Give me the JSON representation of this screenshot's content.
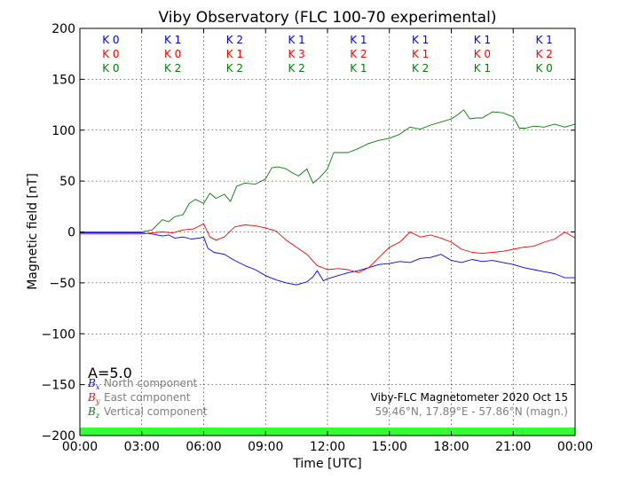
{
  "chart_data": {
    "type": "line",
    "title": "Viby Observatory (FLC 100-70 experimental)",
    "xlabel": "Time [UTC]",
    "ylabel": "Magnetic field [nT]",
    "xlim": [
      0,
      24
    ],
    "ylim": [
      -200,
      200
    ],
    "x_ticks": [
      "00:00",
      "03:00",
      "06:00",
      "09:00",
      "12:00",
      "15:00",
      "18:00",
      "21:00",
      "00:00"
    ],
    "y_ticks": [
      200,
      150,
      100,
      50,
      0,
      -50,
      -100,
      -150,
      -200
    ],
    "y_tick_labels": [
      "200",
      "150",
      "100",
      "50",
      "0",
      "−50",
      "−100",
      "−150",
      "−200"
    ],
    "grid": true,
    "series": [
      {
        "name": "North component",
        "legend_symbol": "B",
        "legend_sub": "x",
        "color": "#0000ff",
        "x": [
          0,
          1,
          2,
          3,
          3.5,
          4,
          4.3,
          4.6,
          5,
          5.4,
          5.8,
          6,
          6.2,
          6.5,
          7,
          7.5,
          8,
          8.5,
          9,
          9.5,
          10,
          10.5,
          11,
          11.3,
          11.5,
          11.8,
          12,
          12.5,
          13,
          13.5,
          14,
          14.5,
          15,
          15.5,
          16,
          16.5,
          17,
          17.5,
          18,
          18.5,
          19,
          19.5,
          20,
          20.5,
          21,
          21.5,
          22,
          22.5,
          23,
          23.5,
          24
        ],
        "y": [
          -1,
          -1,
          -1,
          -1,
          -2,
          -4,
          -3,
          -6,
          -5,
          -7,
          -6,
          -5,
          -16,
          -20,
          -22,
          -28,
          -33,
          -37,
          -43,
          -47,
          -50,
          -52,
          -49,
          -44,
          -38,
          -48,
          -46,
          -43,
          -40,
          -38,
          -35,
          -32,
          -31,
          -29,
          -30,
          -26,
          -25,
          -22,
          -28,
          -30,
          -27,
          -29,
          -28,
          -30,
          -32,
          -35,
          -37,
          -39,
          -41,
          -45,
          -45
        ]
      },
      {
        "name": "East component",
        "legend_symbol": "B",
        "legend_sub": "y",
        "color": "#ff0000",
        "x": [
          0,
          1,
          2,
          3,
          3.5,
          4,
          4.5,
          5,
          5.5,
          6,
          6.3,
          6.6,
          7,
          7.5,
          8,
          8.5,
          9,
          9.5,
          10,
          10.5,
          11,
          11.5,
          12,
          12.5,
          13,
          13.5,
          14,
          14.5,
          15,
          15.5,
          16,
          16.5,
          17,
          17.5,
          18,
          18.5,
          19,
          19.5,
          20,
          20.5,
          21,
          21.5,
          22,
          22.5,
          23,
          23.5,
          24
        ],
        "y": [
          -2,
          -2,
          -2,
          -2,
          -1,
          0,
          -1,
          2,
          3,
          8,
          -5,
          -8,
          -5,
          5,
          7,
          6,
          4,
          1,
          -8,
          -15,
          -22,
          -33,
          -37,
          -36,
          -37,
          -40,
          -35,
          -25,
          -15,
          -10,
          0,
          -5,
          -3,
          -6,
          -10,
          -17,
          -20,
          -21,
          -20,
          -19,
          -17,
          -15,
          -14,
          -10,
          -7,
          0,
          -6
        ]
      },
      {
        "name": "Vertical component",
        "legend_symbol": "B",
        "legend_sub": "z",
        "color": "#008000",
        "x": [
          0,
          1,
          2,
          3,
          3.5,
          3.8,
          4,
          4.3,
          4.6,
          5,
          5.3,
          5.6,
          6,
          6.3,
          6.6,
          7,
          7.3,
          7.6,
          8,
          8.5,
          9,
          9.3,
          9.6,
          10,
          10.3,
          10.6,
          11,
          11.3,
          11.6,
          12,
          12.3,
          12.6,
          13,
          13.5,
          14,
          14.5,
          15,
          15.5,
          16,
          16.5,
          17,
          17.5,
          18,
          18.3,
          18.6,
          18.9,
          19.2,
          19.5,
          20,
          20.5,
          21,
          21.3,
          21.6,
          22,
          22.5,
          23,
          23.5,
          24
        ],
        "y": [
          0,
          0,
          0,
          0,
          2,
          8,
          12,
          10,
          15,
          17,
          28,
          32,
          28,
          38,
          33,
          37,
          30,
          45,
          48,
          47,
          52,
          63,
          64,
          62,
          58,
          55,
          62,
          48,
          53,
          62,
          78,
          78,
          78,
          82,
          87,
          90,
          92,
          96,
          103,
          101,
          105,
          108,
          111,
          115,
          120,
          111,
          112,
          112,
          118,
          117,
          113,
          102,
          102,
          104,
          103,
          106,
          103,
          106
        ]
      }
    ],
    "k_rows": [
      {
        "name": "North",
        "color": "#0000ff",
        "labels": [
          "K 0",
          "K 1",
          "K 2",
          "K 1",
          "K 1",
          "K 1",
          "K 1",
          "K 1"
        ]
      },
      {
        "name": "East",
        "color": "#ff0000",
        "labels": [
          "K 0",
          "K 0",
          "K 1",
          "K 3",
          "K 2",
          "K 1",
          "K 0",
          "K 2"
        ]
      },
      {
        "name": "Vertical",
        "color": "#008000",
        "labels": [
          "K 0",
          "K 2",
          "K 2",
          "K 2",
          "K 1",
          "K 2",
          "K 1",
          "K 0"
        ]
      }
    ],
    "a_index": "A=5.0",
    "annotation_line1": "Viby-FLC Magnetometer 2020 Oct 15",
    "annotation_line2": "59.46°N, 17.89°E - 57.86°N (magn.)",
    "status_bar_color": "#33ff33",
    "legend_placement": "lower-left"
  }
}
